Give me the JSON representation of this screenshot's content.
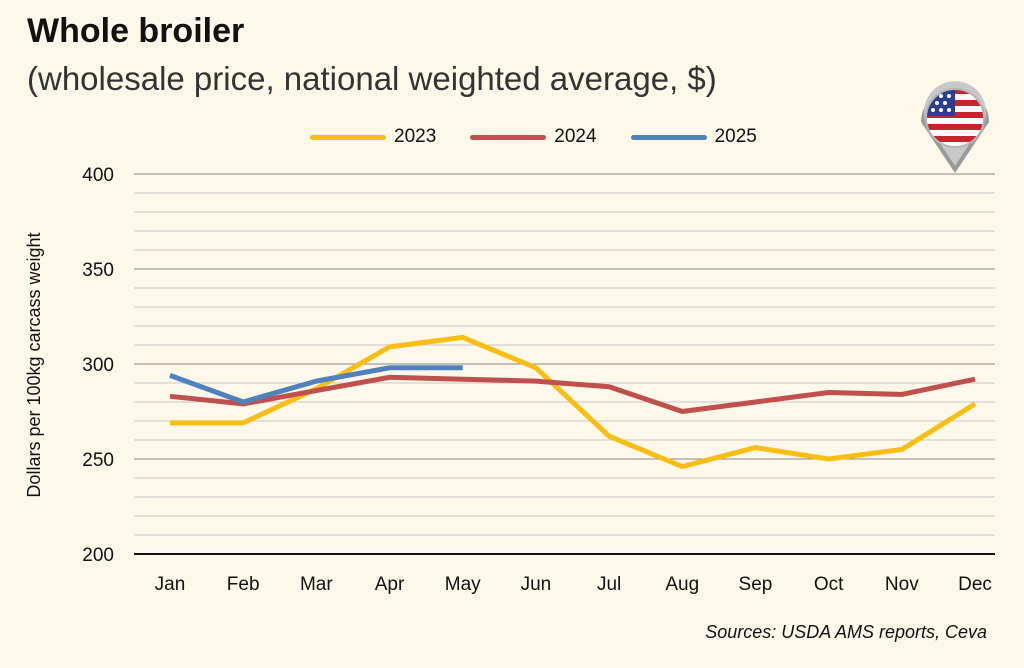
{
  "title": "Whole broiler",
  "subtitle": "(wholesale price, national weighted average, $)",
  "source": "Sources: USDA AMS reports, Ceva",
  "flag_icon": "us-flag-pin-icon",
  "colors": {
    "background": "#fdf8e9",
    "s2023": "#f9be14",
    "s2024": "#c0504d",
    "s2025": "#4f81bd",
    "grid_major": "#888888",
    "grid_minor": "#c9c9c9"
  },
  "chart_data": {
    "type": "line",
    "title": "Whole broiler",
    "xlabel": "",
    "ylabel": "Dollars per 100kg carcass weight",
    "ylim": [
      200,
      400
    ],
    "yticks": [
      200,
      250,
      300,
      350,
      400
    ],
    "ytick_labels": [
      "200",
      "250",
      "300",
      "350",
      "400"
    ],
    "minor_step": 10,
    "categories": [
      "Jan",
      "Feb",
      "Mar",
      "Apr",
      "May",
      "Jun",
      "Jul",
      "Aug",
      "Sep",
      "Oct",
      "Nov",
      "Dec"
    ],
    "legend_position": "top-center",
    "series": [
      {
        "name": "2023",
        "color": "#f9be14",
        "values": [
          269,
          269,
          287,
          309,
          314,
          298,
          262,
          246,
          256,
          250,
          255,
          279
        ]
      },
      {
        "name": "2024",
        "color": "#c0504d",
        "values": [
          283,
          279,
          286,
          293,
          292,
          291,
          288,
          275,
          280,
          285,
          284,
          292
        ]
      },
      {
        "name": "2025",
        "color": "#4f81bd",
        "values": [
          294,
          280,
          291,
          298,
          298,
          null,
          null,
          null,
          null,
          null,
          null,
          null
        ]
      }
    ]
  }
}
